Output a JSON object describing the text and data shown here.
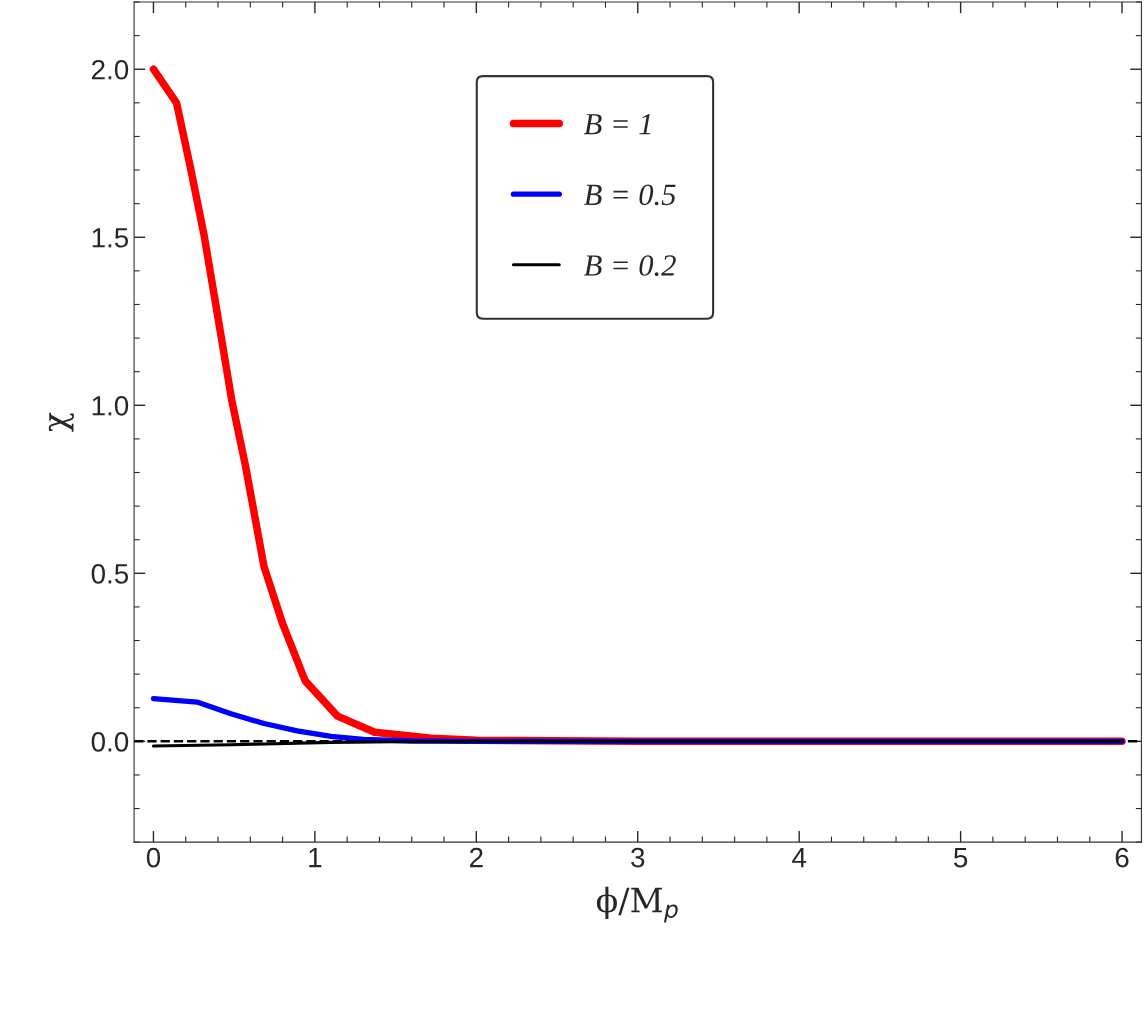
{
  "chart_data": {
    "type": "line",
    "xlabel": "ϕ/M$_{p}$",
    "ylabel": "χ",
    "xlim": [
      -0.12,
      6.12
    ],
    "ylim": [
      -0.3,
      2.2
    ],
    "xticks": [
      0,
      1,
      2,
      3,
      4,
      5,
      6
    ],
    "yticks": [
      {
        "value": 0,
        "label": "0.0"
      },
      {
        "value": 0.5,
        "label": "0.5"
      },
      {
        "value": 1,
        "label": "1.0"
      },
      {
        "value": 1.5,
        "label": "1.5"
      },
      {
        "value": 2,
        "label": "2.0"
      }
    ],
    "legend": "top right",
    "grid": false,
    "line_style": "solid",
    "ref_lines": [
      {
        "axis": "y",
        "value": 0,
        "color": "#000000",
        "line_style": "dashed"
      }
    ],
    "series": [
      {
        "name": "B = 1",
        "color": "#ff0000",
        "x": [
          0,
          0.143,
          0.228,
          0.314,
          0.4,
          0.485,
          0.57,
          0.685,
          0.8,
          0.94,
          1.14,
          1.37,
          1.72,
          2.0,
          3,
          6
        ],
        "values": [
          2.0,
          1.9,
          1.71,
          1.505,
          1.26,
          1.015,
          0.82,
          0.52,
          0.35,
          0.18,
          0.075,
          0.027,
          0.009,
          0.003,
          0,
          0
        ]
      },
      {
        "name": "B = 0.5",
        "color": "#0000ff",
        "x": [
          0,
          0.27,
          0.48,
          0.685,
          0.89,
          1.1,
          1.3,
          1.6,
          2,
          6
        ],
        "values": [
          0.127,
          0.117,
          0.082,
          0.053,
          0.031,
          0.015,
          0.006,
          0.001,
          0,
          0
        ]
      },
      {
        "name": "B = 0.2",
        "color": "#000000",
        "x": [
          0,
          0.48,
          1.1,
          1.5,
          2,
          6
        ],
        "values": [
          -0.014,
          -0.01,
          -0.003,
          -0.001,
          0,
          0
        ]
      }
    ]
  }
}
